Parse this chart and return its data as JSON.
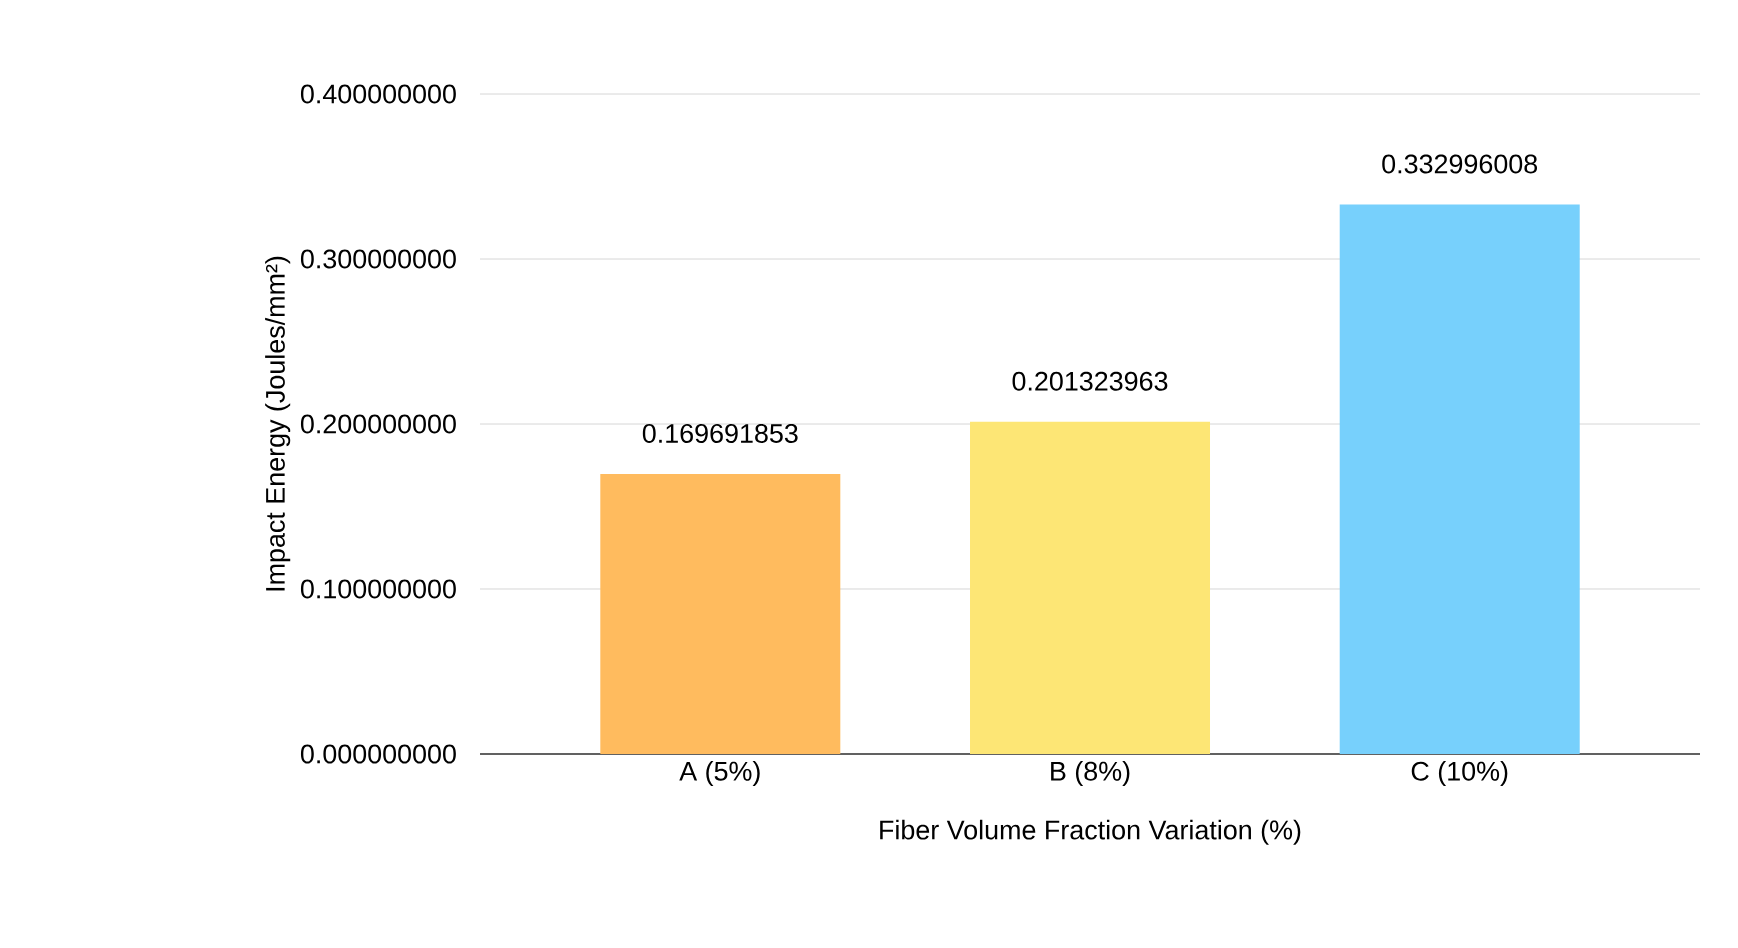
{
  "chart_data": {
    "type": "bar",
    "xlabel": "Fiber Volume Fraction Variation (%)",
    "ylabel": "Impact Energy (Joules/mm²)",
    "categories": [
      "A (5%)",
      "B (8%)",
      "C (10%)"
    ],
    "values": [
      0.169691853,
      0.201323963,
      0.332996008
    ],
    "colors": [
      "#ffbb5e",
      "#fde675",
      "#77d0fc"
    ],
    "ylim": [
      0,
      0.4
    ],
    "yticks": [
      {
        "value": 0,
        "label": "0.000000000"
      },
      {
        "value": 0.1,
        "label": "0.100000000"
      },
      {
        "value": 0.2,
        "label": "0.200000000"
      },
      {
        "value": 0.3,
        "label": "0.300000000"
      },
      {
        "value": 0.4,
        "label": "0.400000000"
      }
    ],
    "grid": "y",
    "data_labels": true
  }
}
